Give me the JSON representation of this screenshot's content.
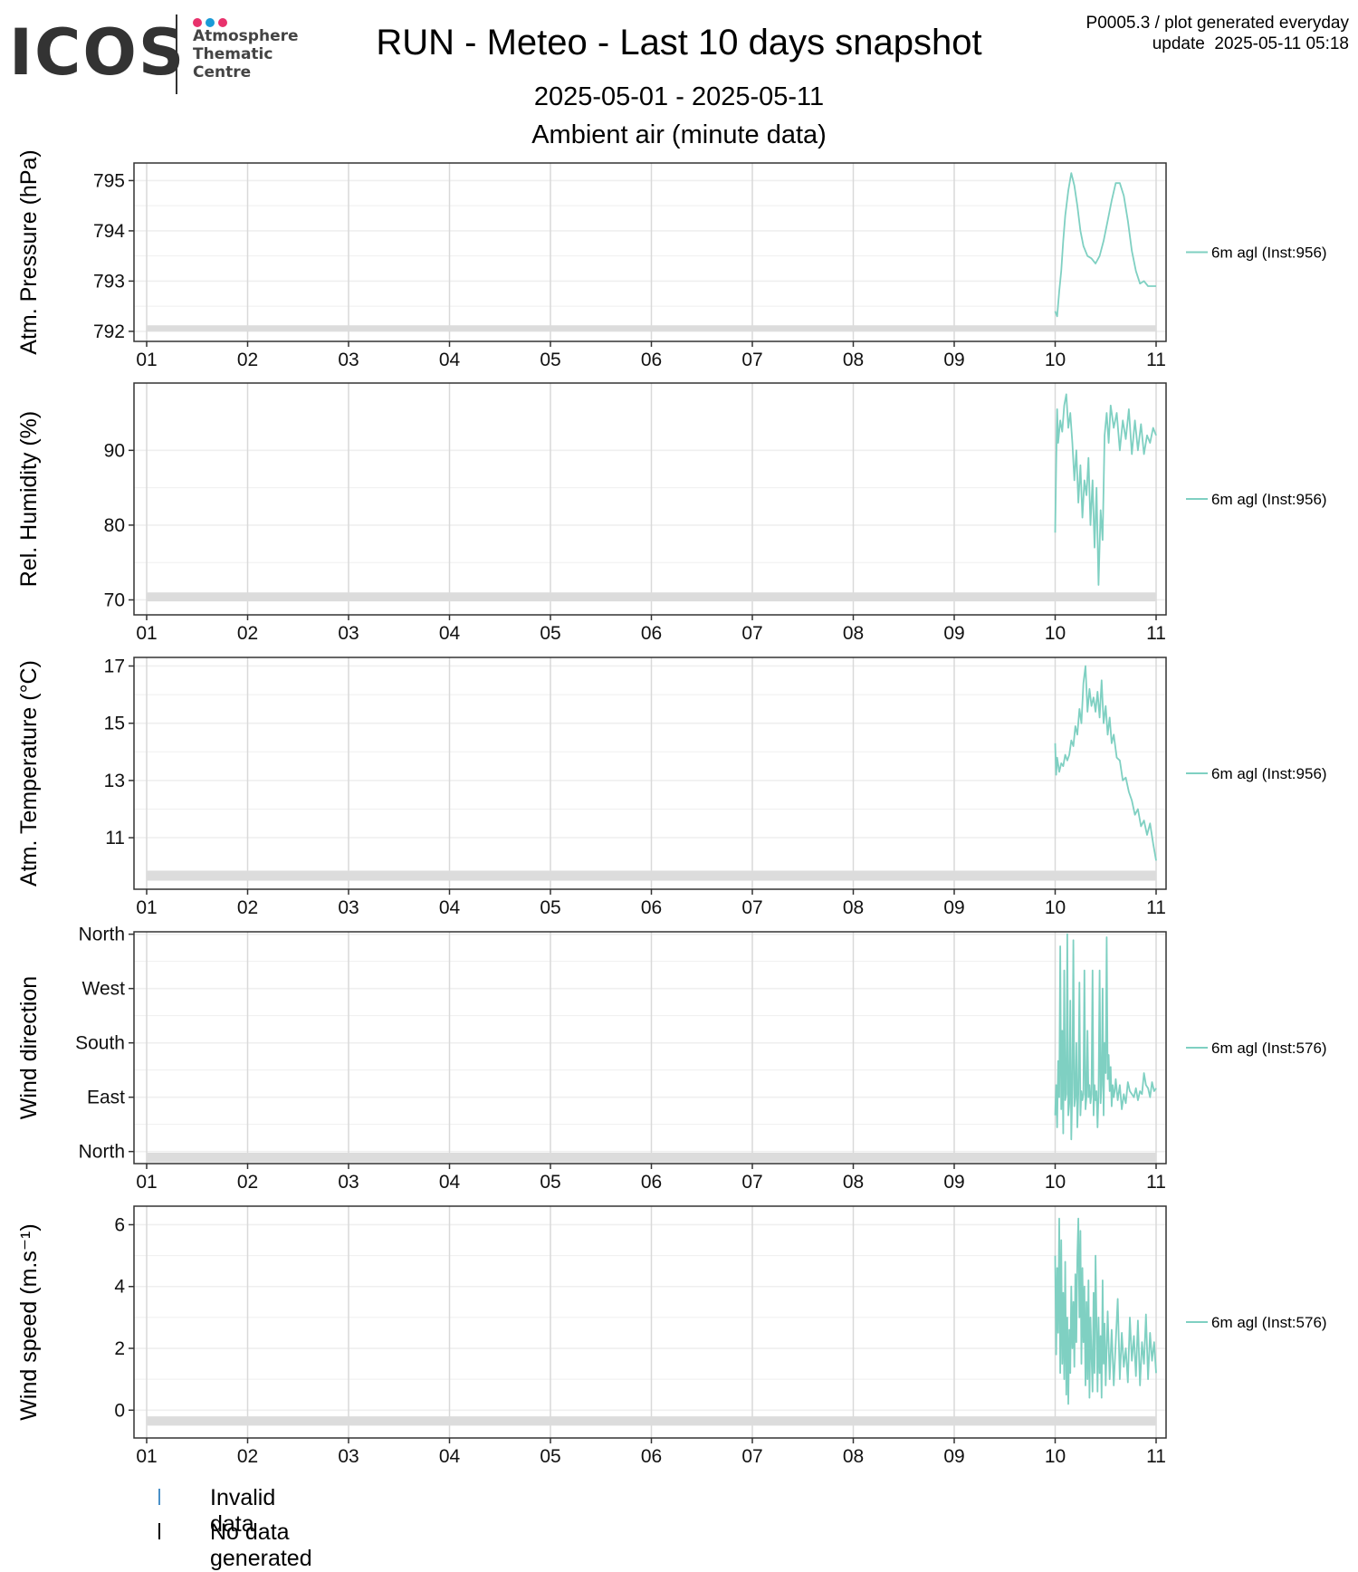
{
  "header": {
    "logo_text": "ICOS",
    "logo_lines": [
      "Atmosphere",
      "Thematic",
      "Centre"
    ],
    "logo_dot_colors": [
      "#e8326c",
      "#1a9bd7",
      "#e8326c"
    ],
    "title": "RUN - Meteo - Last 10 days snapshot",
    "date_range": "2025-05-01 - 2025-05-11",
    "subtitle": "Ambient air (minute data)",
    "meta_line1": "P0005.3 / plot generated everyday",
    "meta_line2": "update  2025-05-11 05:18"
  },
  "colors": {
    "series": "#7fd0c2",
    "grid": "#d9d9d9",
    "minor_grid": "#efefef",
    "no_data_band": "#dcdcdc",
    "invalid_mark": "#4a90c8",
    "nodata_mark": "#000000"
  },
  "legend_bottom": [
    {
      "label": "Invalid data",
      "color": "#4a90c8"
    },
    {
      "label": "No data generated",
      "color": "#000000"
    }
  ],
  "chart_data": [
    {
      "type": "line",
      "ylabel": "Atm. Pressure (hPa)",
      "xlim": [
        1,
        11
      ],
      "ylim": [
        791.8,
        795.35
      ],
      "yticks": [
        792,
        793,
        794,
        795
      ],
      "yticklabels": [
        "792",
        "793",
        "794",
        "795"
      ],
      "xticks": [
        1,
        2,
        3,
        4,
        5,
        6,
        7,
        8,
        9,
        10,
        11
      ],
      "xticklabels": [
        "01",
        "02",
        "03",
        "04",
        "05",
        "06",
        "07",
        "08",
        "09",
        "10",
        "11"
      ],
      "grid": true,
      "no_data_band": [
        792.0,
        792.12
      ],
      "series": [
        {
          "name": "6m agl (Inst:956)",
          "x": [
            10.0,
            10.02,
            10.04,
            10.06,
            10.08,
            10.1,
            10.13,
            10.16,
            10.19,
            10.22,
            10.25,
            10.28,
            10.32,
            10.36,
            10.4,
            10.44,
            10.48,
            10.52,
            10.56,
            10.6,
            10.64,
            10.68,
            10.72,
            10.76,
            10.8,
            10.84,
            10.88,
            10.92,
            10.96,
            11.0
          ],
          "y": [
            792.4,
            792.3,
            792.8,
            793.2,
            793.8,
            794.3,
            794.8,
            795.15,
            794.9,
            794.5,
            794.0,
            793.7,
            793.5,
            793.45,
            793.35,
            793.5,
            793.8,
            794.2,
            794.6,
            794.95,
            794.95,
            794.7,
            794.2,
            793.6,
            793.2,
            792.95,
            793.0,
            792.9,
            792.9,
            792.9
          ]
        }
      ]
    },
    {
      "type": "line",
      "ylabel": "Rel. Humidity (%)",
      "xlim": [
        1,
        11
      ],
      "ylim": [
        68.0,
        99.0
      ],
      "yticks": [
        70,
        80,
        90
      ],
      "yticklabels": [
        "70",
        "80",
        "90"
      ],
      "xticks": [
        1,
        2,
        3,
        4,
        5,
        6,
        7,
        8,
        9,
        10,
        11
      ],
      "xticklabels": [
        "01",
        "02",
        "03",
        "04",
        "05",
        "06",
        "07",
        "08",
        "09",
        "10",
        "11"
      ],
      "grid": true,
      "no_data_band": [
        69.8,
        71.0
      ],
      "series": [
        {
          "name": "6m agl (Inst:956)",
          "x": [
            10.0,
            10.01,
            10.02,
            10.03,
            10.05,
            10.07,
            10.09,
            10.11,
            10.13,
            10.15,
            10.17,
            10.19,
            10.21,
            10.23,
            10.25,
            10.27,
            10.29,
            10.31,
            10.33,
            10.35,
            10.37,
            10.39,
            10.41,
            10.43,
            10.45,
            10.47,
            10.49,
            10.51,
            10.53,
            10.55,
            10.58,
            10.61,
            10.64,
            10.67,
            10.7,
            10.73,
            10.76,
            10.79,
            10.82,
            10.85,
            10.88,
            10.91,
            10.94,
            10.97,
            11.0
          ],
          "y": [
            79.0,
            88.0,
            95.5,
            91.0,
            94.0,
            92.5,
            96.0,
            97.5,
            93.0,
            95.0,
            91.0,
            86.0,
            90.0,
            83.0,
            88.0,
            81.0,
            86.0,
            84.0,
            89.0,
            80.0,
            86.0,
            77.0,
            85.0,
            72.0,
            82.0,
            78.0,
            92.0,
            95.0,
            91.0,
            96.0,
            93.0,
            95.0,
            90.0,
            94.0,
            91.5,
            95.5,
            89.5,
            94.0,
            90.0,
            93.5,
            89.5,
            92.0,
            91.0,
            93.0,
            92.0
          ]
        }
      ]
    },
    {
      "type": "line",
      "ylabel": "Atm. Temperature (°C)",
      "xlim": [
        1,
        11
      ],
      "ylim": [
        9.2,
        17.3
      ],
      "yticks": [
        11,
        13,
        15,
        17
      ],
      "yticklabels": [
        "11",
        "13",
        "15",
        "17"
      ],
      "xticks": [
        1,
        2,
        3,
        4,
        5,
        6,
        7,
        8,
        9,
        10,
        11
      ],
      "xticklabels": [
        "01",
        "02",
        "03",
        "04",
        "05",
        "06",
        "07",
        "08",
        "09",
        "10",
        "11"
      ],
      "grid": true,
      "no_data_band": [
        9.5,
        9.85
      ],
      "series": [
        {
          "name": "6m agl (Inst:956)",
          "x": [
            10.0,
            10.01,
            10.02,
            10.04,
            10.06,
            10.08,
            10.1,
            10.12,
            10.14,
            10.16,
            10.18,
            10.2,
            10.22,
            10.24,
            10.26,
            10.28,
            10.3,
            10.32,
            10.34,
            10.36,
            10.38,
            10.4,
            10.42,
            10.44,
            10.46,
            10.48,
            10.5,
            10.52,
            10.54,
            10.56,
            10.58,
            10.61,
            10.64,
            10.67,
            10.7,
            10.73,
            10.76,
            10.79,
            10.82,
            10.85,
            10.88,
            10.91,
            10.94,
            10.97,
            11.0
          ],
          "y": [
            14.3,
            13.2,
            13.8,
            13.3,
            13.6,
            13.5,
            13.9,
            13.7,
            13.9,
            14.4,
            14.2,
            14.9,
            14.6,
            15.5,
            15.0,
            16.4,
            17.0,
            15.4,
            16.2,
            15.6,
            15.9,
            15.4,
            16.1,
            15.2,
            16.5,
            15.0,
            15.6,
            14.6,
            15.2,
            14.3,
            14.6,
            13.8,
            13.7,
            13.0,
            13.1,
            12.6,
            12.3,
            11.8,
            12.0,
            11.4,
            11.6,
            11.1,
            11.5,
            10.8,
            10.2
          ]
        }
      ]
    },
    {
      "type": "line",
      "ylabel": "Wind direction",
      "xlim": [
        1,
        11
      ],
      "ylim": [
        -20,
        364
      ],
      "yticks": [
        0,
        90,
        180,
        270,
        360
      ],
      "yticklabels": [
        "North",
        "East",
        "South",
        "West",
        "North"
      ],
      "xticks": [
        1,
        2,
        3,
        4,
        5,
        6,
        7,
        8,
        9,
        10,
        11
      ],
      "xticklabels": [
        "01",
        "02",
        "03",
        "04",
        "05",
        "06",
        "07",
        "08",
        "09",
        "10",
        "11"
      ],
      "grid": true,
      "no_data_band": [
        -18,
        -2
      ],
      "series": [
        {
          "name": "6m agl (Inst:576)",
          "x": [
            10.0,
            10.01,
            10.02,
            10.03,
            10.04,
            10.05,
            10.06,
            10.07,
            10.08,
            10.09,
            10.1,
            10.11,
            10.12,
            10.13,
            10.14,
            10.15,
            10.16,
            10.17,
            10.18,
            10.19,
            10.2,
            10.21,
            10.22,
            10.23,
            10.24,
            10.25,
            10.26,
            10.27,
            10.28,
            10.29,
            10.3,
            10.31,
            10.32,
            10.33,
            10.34,
            10.35,
            10.36,
            10.37,
            10.38,
            10.39,
            10.4,
            10.41,
            10.42,
            10.43,
            10.44,
            10.45,
            10.46,
            10.47,
            10.48,
            10.49,
            10.5,
            10.51,
            10.52,
            10.53,
            10.54,
            10.55,
            10.56,
            10.57,
            10.58,
            10.59,
            10.6,
            10.62,
            10.64,
            10.66,
            10.68,
            10.7,
            10.72,
            10.74,
            10.76,
            10.78,
            10.8,
            10.82,
            10.84,
            10.86,
            10.88,
            10.9,
            10.92,
            10.94,
            10.96,
            10.98,
            11.0
          ],
          "y": [
            60,
            110,
            40,
            150,
            90,
            340,
            70,
            200,
            30,
            300,
            85,
            95,
            360,
            60,
            80,
            250,
            20,
            110,
            350,
            75,
            90,
            180,
            40,
            95,
            280,
            60,
            100,
            85,
            95,
            300,
            70,
            90,
            200,
            90,
            110,
            80,
            95,
            300,
            60,
            110,
            85,
            100,
            40,
            95,
            300,
            80,
            110,
            270,
            60,
            180,
            130,
            355,
            120,
            160,
            100,
            140,
            75,
            110,
            90,
            100,
            120,
            85,
            110,
            70,
            95,
            80,
            115,
            100,
            95,
            90,
            105,
            85,
            100,
            95,
            130,
            110,
            105,
            90,
            115,
            100,
            105
          ]
        }
      ]
    },
    {
      "type": "line",
      "ylabel": "Wind speed (m.s⁻¹)",
      "xlim": [
        1,
        11
      ],
      "ylim": [
        -0.9,
        6.6
      ],
      "yticks": [
        0,
        2,
        4,
        6
      ],
      "yticklabels": [
        "0",
        "2",
        "4",
        "6"
      ],
      "xticks": [
        1,
        2,
        3,
        4,
        5,
        6,
        7,
        8,
        9,
        10,
        11
      ],
      "xticklabels": [
        "01",
        "02",
        "03",
        "04",
        "05",
        "06",
        "07",
        "08",
        "09",
        "10",
        "11"
      ],
      "grid": true,
      "no_data_band": [
        -0.5,
        -0.2
      ],
      "series": [
        {
          "name": "6m agl (Inst:576)",
          "x": [
            10.0,
            10.01,
            10.02,
            10.03,
            10.04,
            10.05,
            10.06,
            10.07,
            10.08,
            10.09,
            10.1,
            10.11,
            10.12,
            10.13,
            10.14,
            10.15,
            10.16,
            10.17,
            10.18,
            10.19,
            10.2,
            10.21,
            10.22,
            10.23,
            10.24,
            10.25,
            10.26,
            10.27,
            10.28,
            10.29,
            10.3,
            10.31,
            10.32,
            10.33,
            10.34,
            10.35,
            10.36,
            10.37,
            10.38,
            10.39,
            10.4,
            10.41,
            10.42,
            10.43,
            10.44,
            10.45,
            10.46,
            10.47,
            10.48,
            10.49,
            10.5,
            10.52,
            10.54,
            10.56,
            10.58,
            10.6,
            10.62,
            10.64,
            10.66,
            10.68,
            10.7,
            10.72,
            10.74,
            10.76,
            10.78,
            10.8,
            10.82,
            10.84,
            10.86,
            10.88,
            10.9,
            10.92,
            10.94,
            10.96,
            10.98,
            11.0
          ],
          "y": [
            5.0,
            1.8,
            4.6,
            2.5,
            6.2,
            1.2,
            5.5,
            1.5,
            3.8,
            1.0,
            4.8,
            0.5,
            3.0,
            0.2,
            2.6,
            1.2,
            4.0,
            2.0,
            3.5,
            1.4,
            4.4,
            2.2,
            5.0,
            6.2,
            3.0,
            5.8,
            1.5,
            4.6,
            2.2,
            4.0,
            0.8,
            3.5,
            1.0,
            4.2,
            0.4,
            3.0,
            1.8,
            0.6,
            3.8,
            1.2,
            5.0,
            2.8,
            0.6,
            3.0,
            1.2,
            2.4,
            0.4,
            4.2,
            1.5,
            2.8,
            0.8,
            3.2,
            1.0,
            2.6,
            0.8,
            2.2,
            3.6,
            1.0,
            2.5,
            1.4,
            2.0,
            0.9,
            3.0,
            1.6,
            2.4,
            1.1,
            2.9,
            0.8,
            2.2,
            1.5,
            3.1,
            1.0,
            2.5,
            1.6,
            2.2,
            1.2
          ]
        }
      ]
    }
  ]
}
